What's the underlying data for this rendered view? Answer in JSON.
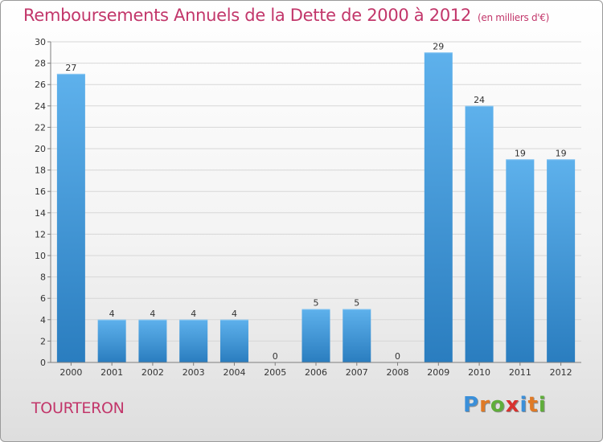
{
  "title": "Remboursements Annuels de la Dette de 2000 à 2012",
  "unit_note": "(en milliers d'€)",
  "commune": "TOURTERON",
  "logo": {
    "text": "Proxiti",
    "letter_colors": [
      "#3a8fd9",
      "#e07a26",
      "#5fae3a",
      "#d8322f",
      "#3a8fd9",
      "#e07a26",
      "#5fae3a"
    ]
  },
  "colors": {
    "title": "#c2366a",
    "bar_top": "#5eb1ec",
    "bar_bottom": "#2a7dbf",
    "grid": "#d7d7d7",
    "axis": "#7d7d7d"
  },
  "chart_data": {
    "type": "bar",
    "categories": [
      "2000",
      "2001",
      "2002",
      "2003",
      "2004",
      "2005",
      "2006",
      "2007",
      "2008",
      "2009",
      "2010",
      "2011",
      "2012"
    ],
    "values": [
      27,
      4,
      4,
      4,
      4,
      0,
      5,
      5,
      0,
      29,
      24,
      19,
      19
    ],
    "data_labels": [
      "27",
      "4",
      "4",
      "4",
      "4",
      "0",
      "5",
      "5",
      "0",
      "29",
      "24",
      "19",
      "19"
    ],
    "ylim": [
      0,
      30
    ],
    "yticks": [
      0,
      2,
      4,
      6,
      8,
      10,
      12,
      14,
      16,
      18,
      20,
      22,
      24,
      26,
      28,
      30
    ],
    "ytick_labels": [
      "0",
      "2",
      "4",
      "6",
      "8",
      "10",
      "12",
      "14",
      "16",
      "18",
      "20",
      "22",
      "24",
      "26",
      "28",
      "30"
    ],
    "grid": "horizontal",
    "xlabel": "",
    "ylabel": ""
  }
}
